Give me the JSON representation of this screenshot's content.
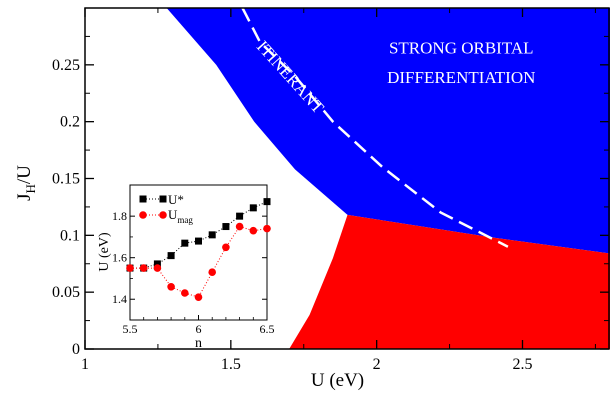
{
  "chart_data": [
    {
      "type": "area",
      "xlabel": "U (eV)",
      "ylabel_main": "J",
      "ylabel_sub": "H",
      "ylabel_tail": "/U",
      "xlim": [
        1.0,
        2.8
      ],
      "ylim": [
        0.0,
        0.3
      ],
      "xticks": [
        1,
        1.5,
        2,
        2.5
      ],
      "xtick_labels": [
        "1",
        "1.5",
        "2",
        "2.5"
      ],
      "yticks": [
        0,
        0.05,
        0.1,
        0.15,
        0.2,
        0.25
      ],
      "ytick_labels": [
        "0",
        "0.05",
        "0.1",
        "0.15",
        "0.2",
        "0.25"
      ],
      "regions": [
        {
          "name": "blue-region",
          "color": "#0000ff",
          "polygon": [
            [
              1.28,
              0.3
            ],
            [
              1.45,
              0.25
            ],
            [
              1.58,
              0.2
            ],
            [
              1.72,
              0.158
            ],
            [
              1.9,
              0.118
            ],
            [
              2.4,
              0.098
            ],
            [
              2.8,
              0.084
            ],
            [
              2.8,
              0.3
            ]
          ]
        },
        {
          "name": "red-region",
          "color": "#ff0000",
          "polygon": [
            [
              1.7,
              0.0
            ],
            [
              1.77,
              0.03
            ],
            [
              1.85,
              0.08
            ],
            [
              1.9,
              0.118
            ],
            [
              2.4,
              0.098
            ],
            [
              2.8,
              0.084
            ],
            [
              2.8,
              0.0
            ]
          ]
        }
      ],
      "boundary_line": {
        "style": "dashed",
        "color": "#ffffff",
        "points": [
          [
            1.54,
            0.3
          ],
          [
            1.6,
            0.27
          ],
          [
            1.72,
            0.24
          ],
          [
            1.85,
            0.2
          ],
          [
            2.02,
            0.16
          ],
          [
            2.22,
            0.12
          ],
          [
            2.45,
            0.09
          ]
        ]
      },
      "annotations": {
        "itinerant": "ITINERANT",
        "strong_line1": "STRONG ORBITAL",
        "strong_line2": "DIFFERENTIATION"
      }
    },
    {
      "type": "scatter",
      "xlabel": "n",
      "ylabel": "U (eV)",
      "xlim": [
        5.5,
        6.5
      ],
      "ylim": [
        1.3,
        1.95
      ],
      "xticks": [
        5.5,
        6,
        6.5
      ],
      "xtick_labels": [
        "5.5",
        "6",
        "6.5"
      ],
      "yticks": [
        1.4,
        1.6,
        1.8
      ],
      "ytick_labels": [
        "1.4",
        "1.6",
        "1.8"
      ],
      "series": [
        {
          "name": "U*",
          "color": "#000000",
          "marker": "square",
          "x": [
            5.5,
            5.6,
            5.7,
            5.8,
            5.9,
            6.0,
            6.1,
            6.2,
            6.3,
            6.4,
            6.5
          ],
          "values": [
            1.55,
            1.55,
            1.57,
            1.61,
            1.67,
            1.68,
            1.71,
            1.75,
            1.8,
            1.84,
            1.87
          ]
        },
        {
          "name": "U",
          "name_sub": "mag",
          "color": "#ff0000",
          "marker": "circle",
          "x": [
            5.5,
            5.6,
            5.7,
            5.8,
            5.9,
            6.0,
            6.1,
            6.2,
            6.3,
            6.4,
            6.5
          ],
          "values": [
            1.55,
            1.55,
            1.55,
            1.46,
            1.43,
            1.41,
            1.53,
            1.65,
            1.75,
            1.73,
            1.74
          ]
        }
      ]
    }
  ]
}
